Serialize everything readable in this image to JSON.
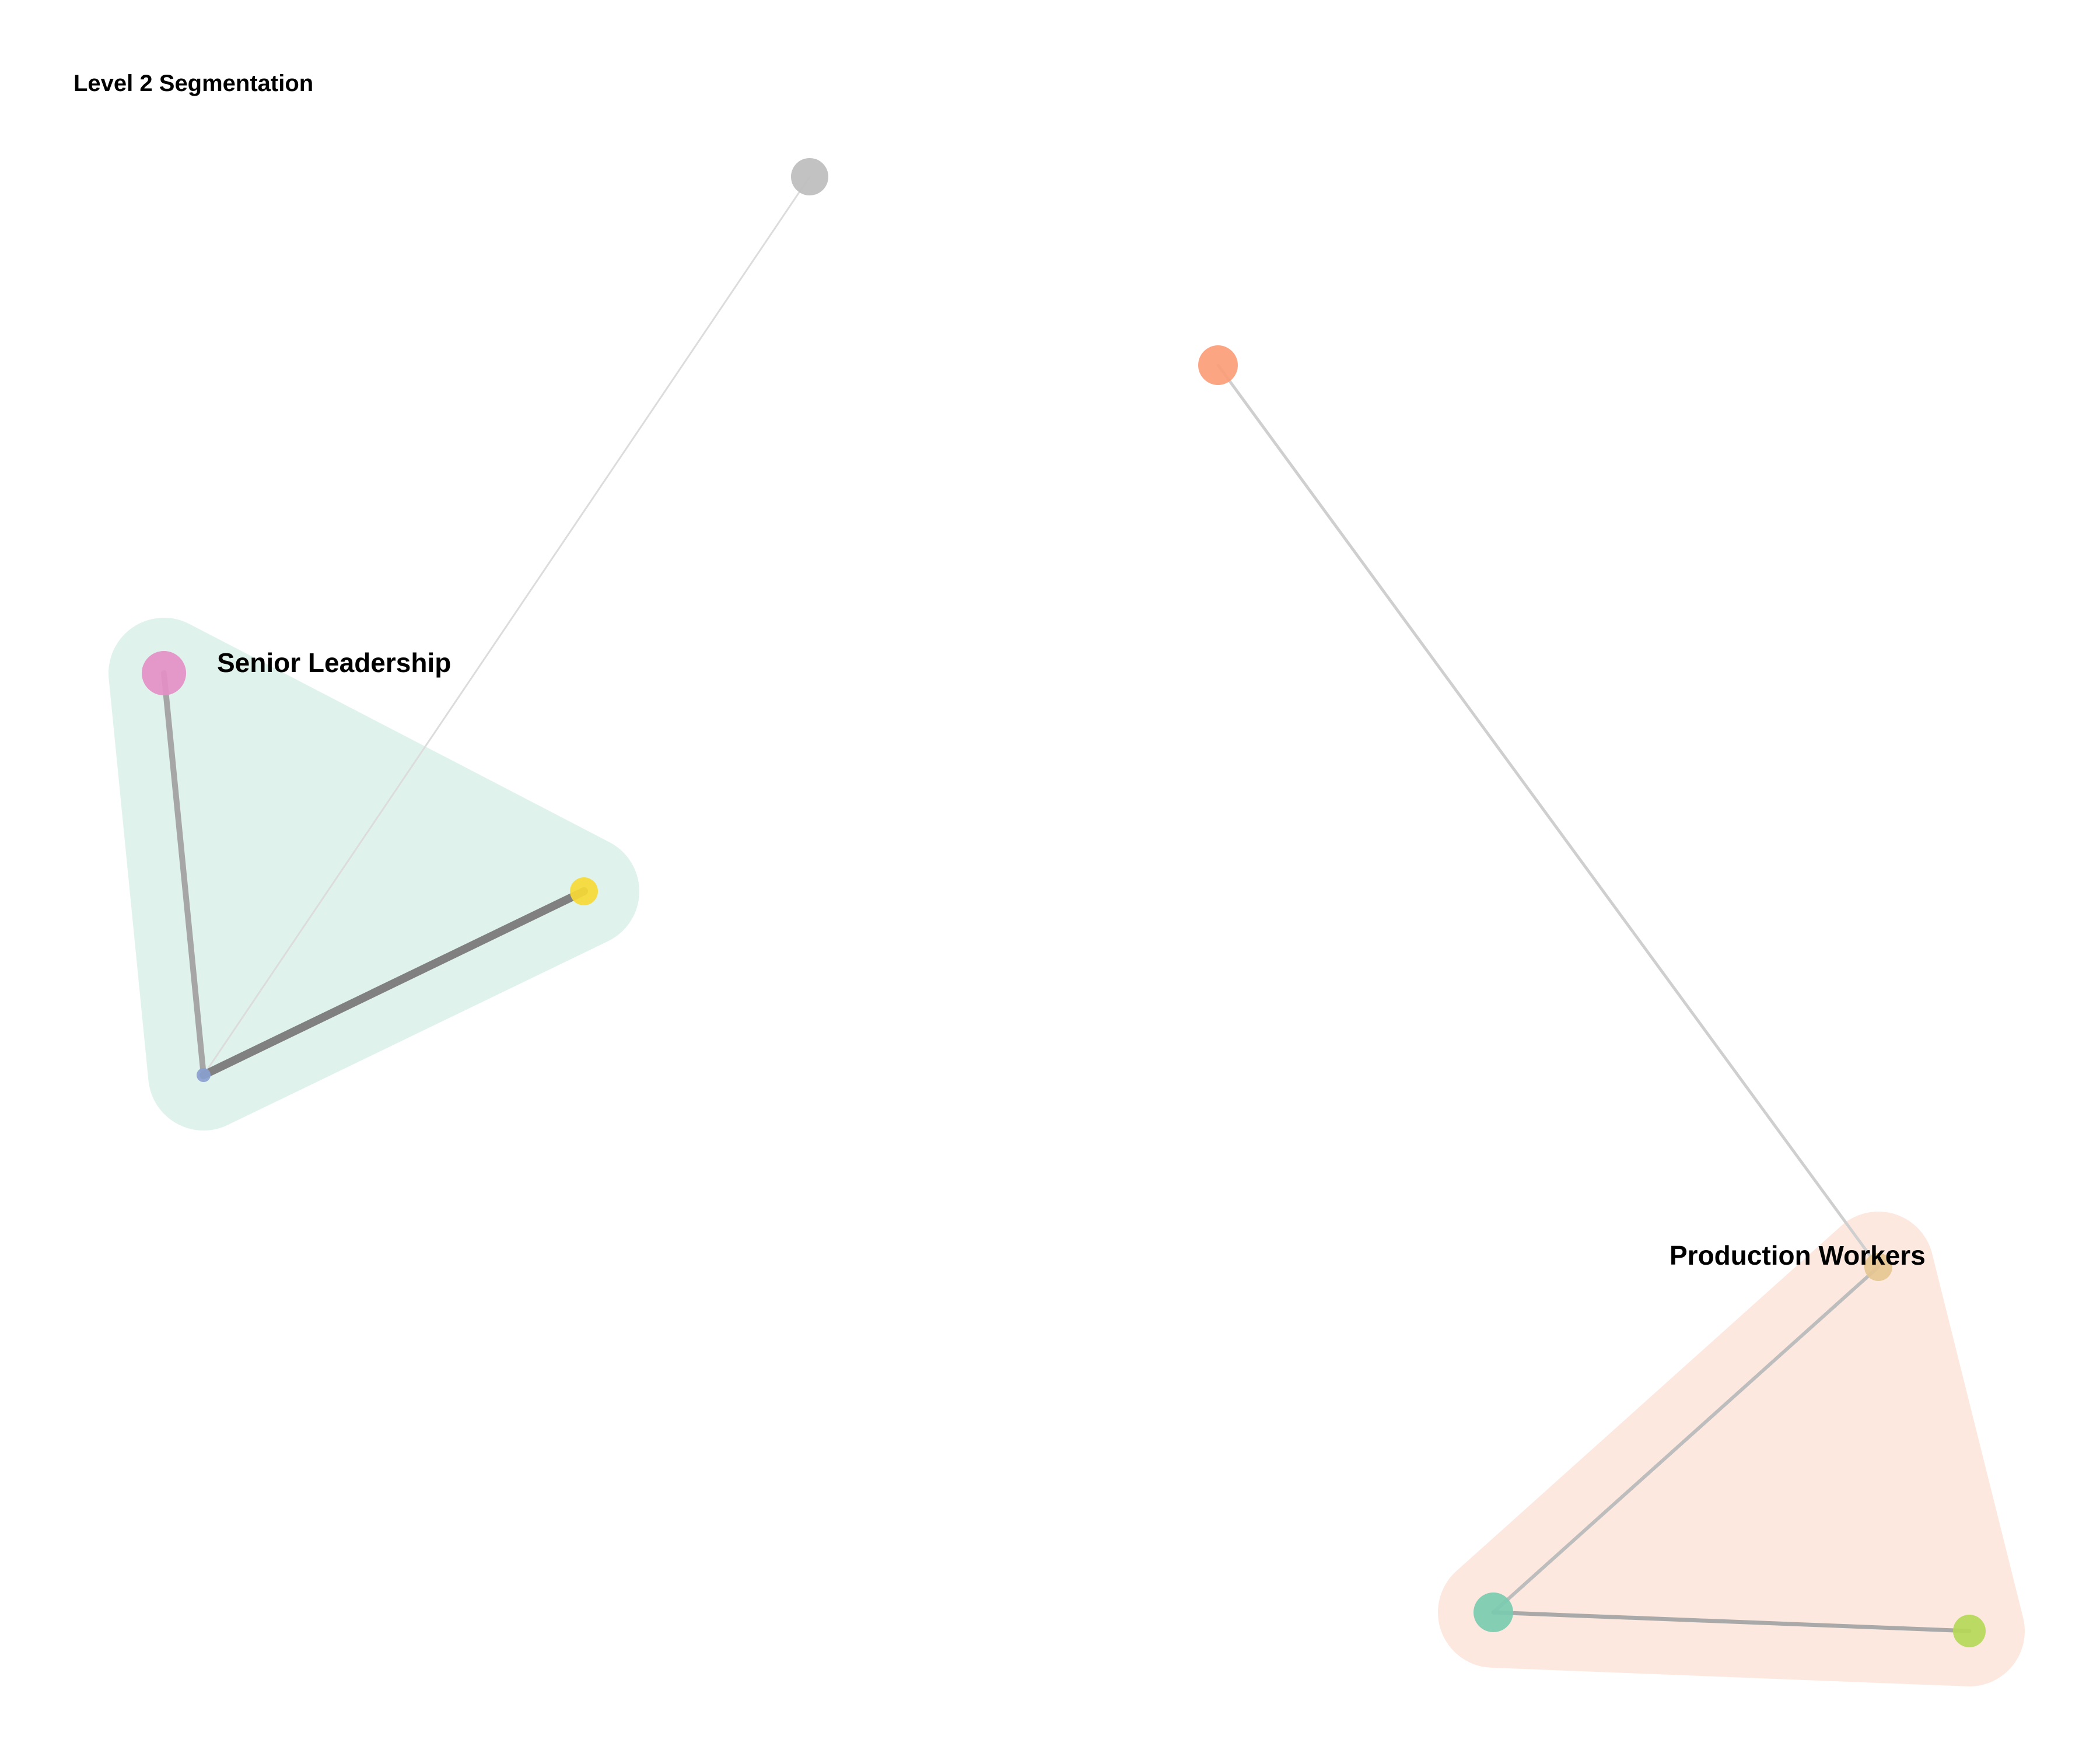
{
  "title": "Level 2 Segmentation",
  "groups": [
    {
      "id": "senior",
      "label": "Senior Leadership",
      "fill": "#dff3ec",
      "members": [
        "pink",
        "yellow",
        "blue"
      ]
    },
    {
      "id": "production",
      "label": "Production Workers",
      "fill": "#fde8df",
      "members": [
        "tan",
        "teal",
        "lime"
      ]
    }
  ],
  "nodes": [
    {
      "id": "gray",
      "color": "#bdbdbd"
    },
    {
      "id": "orange",
      "color": "#fc9d78"
    },
    {
      "id": "pink",
      "color": "#e48fc6"
    },
    {
      "id": "yellow",
      "color": "#f6d935"
    },
    {
      "id": "blue",
      "color": "#8aa0cf"
    },
    {
      "id": "tan",
      "color": "#e6c591"
    },
    {
      "id": "teal",
      "color": "#79cbb0"
    },
    {
      "id": "lime",
      "color": "#b5d858"
    }
  ],
  "edges": [
    {
      "from": "gray",
      "to": "blue",
      "color": "#dcdcdc"
    },
    {
      "from": "orange",
      "to": "tan",
      "color": "#cfcfcf"
    },
    {
      "from": "pink",
      "to": "blue",
      "color": "#a6a6a6"
    },
    {
      "from": "yellow",
      "to": "blue",
      "color": "#808080"
    },
    {
      "from": "tan",
      "to": "teal",
      "color": "#bdbdbd"
    },
    {
      "from": "teal",
      "to": "lime",
      "color": "#a9a9a9"
    }
  ]
}
